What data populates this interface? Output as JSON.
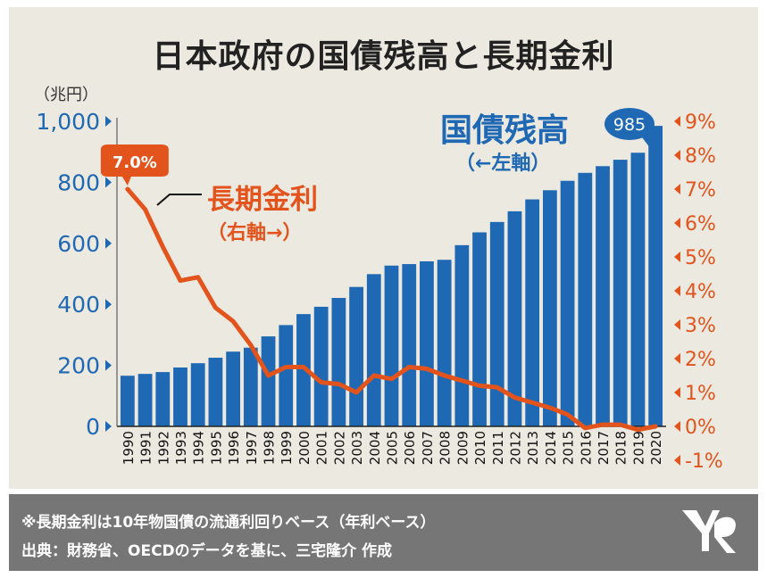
{
  "title": "日本政府の国債残高と長期金利",
  "footer": {
    "note": "※長期金利は10年物国債の流通利回りベース（年利ベース）",
    "source": "出典：財務省、OECDのデータを基に、三宅隆介 作成"
  },
  "colors": {
    "debt": "#1f68b3",
    "rate": "#e2541c",
    "panel": "#ece9e1",
    "footer": "#767677"
  },
  "chart_data": {
    "type": "bar",
    "categories": [
      "1990",
      "1991",
      "1992",
      "1993",
      "1994",
      "1995",
      "1996",
      "1997",
      "1998",
      "1999",
      "2000",
      "2001",
      "2002",
      "2003",
      "2004",
      "2005",
      "2006",
      "2007",
      "2008",
      "2009",
      "2010",
      "2011",
      "2012",
      "2013",
      "2014",
      "2015",
      "2016",
      "2017",
      "2018",
      "2019",
      "2020"
    ],
    "left_axis": {
      "unit_label": "（兆円）",
      "ticks": [
        "1,000",
        "800",
        "600",
        "400",
        "200",
        "0"
      ],
      "tick_values": [
        1000,
        800,
        600,
        400,
        200,
        0
      ],
      "ylim": [
        0,
        1000
      ]
    },
    "right_axis": {
      "ticks": [
        "9%",
        "8%",
        "7%",
        "6%",
        "5%",
        "4%",
        "3%",
        "2%",
        "1%",
        "0%",
        "-1%"
      ],
      "tick_values": [
        9,
        8,
        7,
        6,
        5,
        4,
        3,
        2,
        1,
        0,
        -1
      ],
      "ylim": [
        -1,
        9
      ]
    },
    "series": [
      {
        "name": "国債残高",
        "axis_note": "（←左軸）",
        "type": "bar",
        "values": [
          166,
          172,
          178,
          193,
          207,
          225,
          245,
          258,
          295,
          332,
          368,
          392,
          421,
          457,
          499,
          527,
          532,
          541,
          546,
          594,
          636,
          670,
          705,
          744,
          774,
          805,
          831,
          853,
          874,
          897,
          985
        ],
        "callout": "985"
      },
      {
        "name": "長期金利",
        "axis_note": "（右軸→）",
        "type": "line",
        "values": [
          7.0,
          6.4,
          5.3,
          4.3,
          4.4,
          3.5,
          3.1,
          2.4,
          1.5,
          1.75,
          1.75,
          1.3,
          1.25,
          1.0,
          1.5,
          1.4,
          1.75,
          1.7,
          1.5,
          1.35,
          1.2,
          1.15,
          0.85,
          0.7,
          0.55,
          0.35,
          -0.05,
          0.05,
          0.05,
          -0.1,
          0.0
        ],
        "callout": "7.0%"
      }
    ]
  }
}
